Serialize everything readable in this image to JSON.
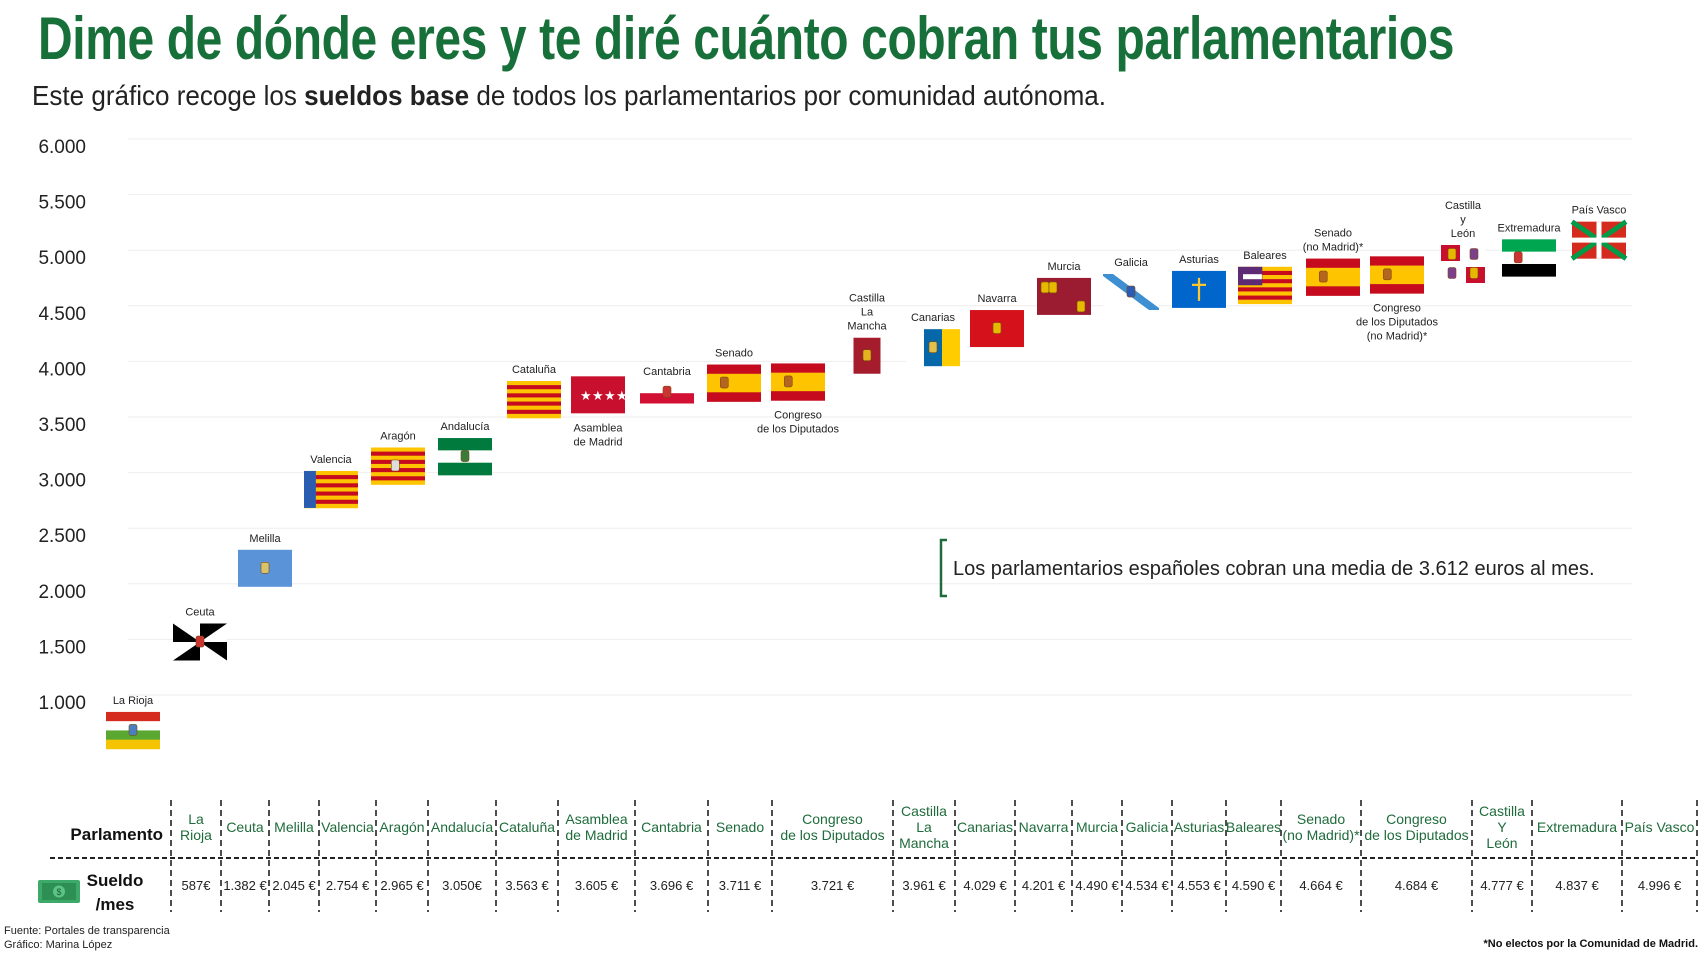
{
  "title": "Dime de dónde eres y te diré cuánto cobran tus parlamentarios",
  "subtitle": {
    "before": "Este gráfico recoge los ",
    "bold": "sueldos base",
    "after": " de todos los parlamentarios por comunidad autónoma."
  },
  "annotation": "Los parlamentarios españoles cobran una media de 3.612 euros al mes.",
  "colors": {
    "title": "#17703a",
    "table_header": "#1f6b3b",
    "grid": "#eeeeee"
  },
  "chart_data": {
    "type": "scatter",
    "marker": "flag",
    "ylim": [
      500,
      6000
    ],
    "yticks": [
      "1.000",
      "1.500",
      "2.000",
      "2.500",
      "3.000",
      "3.500",
      "4.000",
      "4.500",
      "5.000",
      "5.500",
      "6.000"
    ],
    "ytick_values": [
      1000,
      1500,
      2000,
      2500,
      3000,
      3500,
      4000,
      4500,
      5000,
      5500,
      6000
    ],
    "grid": true,
    "points": [
      {
        "label": "La Rioja",
        "flag": "la-rioja",
        "value": 587
      },
      {
        "label": "Ceuta",
        "flag": "ceuta",
        "value": 1382
      },
      {
        "label": "Melilla",
        "flag": "melilla",
        "value": 2045
      },
      {
        "label": "Valencia",
        "flag": "valencia",
        "value": 2754
      },
      {
        "label": "Aragón",
        "flag": "aragon",
        "value": 2965
      },
      {
        "label": "Andalucía",
        "flag": "andalucia",
        "value": 3050
      },
      {
        "label": "Cataluña",
        "flag": "cataluna",
        "value": 3563
      },
      {
        "label": "Asamblea\nde Madrid",
        "flag": "madrid",
        "value": 3605,
        "label_below": true
      },
      {
        "label": "Cantabria",
        "flag": "cantabria",
        "value": 3696
      },
      {
        "label": "Senado",
        "flag": "spain",
        "value": 3711
      },
      {
        "label": "Congreso\nde los Diputados",
        "flag": "spain",
        "value": 3721,
        "label_below": true
      },
      {
        "label": "Castilla\nLa\nMancha",
        "flag": "castilla-la-mancha",
        "value": 3961
      },
      {
        "label": "Canarias",
        "flag": "canarias",
        "value": 4029
      },
      {
        "label": "Navarra",
        "flag": "navarra",
        "value": 4201
      },
      {
        "label": "Murcia",
        "flag": "murcia",
        "value": 4490
      },
      {
        "label": "Galicia",
        "flag": "galicia",
        "value": 4534
      },
      {
        "label": "Asturias",
        "flag": "asturias",
        "value": 4553
      },
      {
        "label": "Baleares",
        "flag": "baleares",
        "value": 4590
      },
      {
        "label": "Senado\n(no Madrid)*",
        "flag": "spain",
        "value": 4664
      },
      {
        "label": "Congreso\nde los Diputados\n(no Madrid)*",
        "flag": "spain",
        "value": 4684,
        "label_below": true
      },
      {
        "label": "Castilla\ny\nLeón",
        "flag": "castilla-leon",
        "value": 4777
      },
      {
        "label": "Extremadura",
        "flag": "extremadura",
        "value": 4837
      },
      {
        "label": "País Vasco",
        "flag": "pais-vasco",
        "value": 4996
      }
    ]
  },
  "table": {
    "row_header_1": "Parlamento",
    "row_header_2": [
      "Sueldo",
      "/mes"
    ],
    "row_icon": "money-bill-icon",
    "columns": [
      {
        "name": "La\nRioja",
        "value": "587€"
      },
      {
        "name": "Ceuta",
        "value": "1.382 €"
      },
      {
        "name": "Melilla",
        "value": "2.045 €"
      },
      {
        "name": "Valencia",
        "value": "2.754 €"
      },
      {
        "name": "Aragón",
        "value": "2.965 €"
      },
      {
        "name": "Andalucía",
        "value": "3.050€"
      },
      {
        "name": "Cataluña",
        "value": "3.563 €"
      },
      {
        "name": "Asamblea\nde Madrid",
        "value": "3.605 €"
      },
      {
        "name": "Cantabria",
        "value": "3.696 €"
      },
      {
        "name": "Senado",
        "value": "3.711 €"
      },
      {
        "name": "Congreso\nde los Diputados",
        "value": "3.721 €"
      },
      {
        "name": "Castilla\nLa\nMancha",
        "value": "3.961 €"
      },
      {
        "name": "Canarias",
        "value": "4.029 €"
      },
      {
        "name": "Navarra",
        "value": "4.201 €"
      },
      {
        "name": "Murcia",
        "value": "4.490  €"
      },
      {
        "name": "Galicia",
        "value": "4.534 €"
      },
      {
        "name": "Asturias",
        "value": "4.553 €"
      },
      {
        "name": "Baleares",
        "value": "4.590 €"
      },
      {
        "name": "Senado\n(no Madrid)*",
        "value": "4.664 €"
      },
      {
        "name": "Congreso\nde los Diputados",
        "value": "4.684 €"
      },
      {
        "name": "Castilla\nY\nLeón",
        "value": "4.777 €"
      },
      {
        "name": "Extremadura",
        "value": "4.837 €"
      },
      {
        "name": "País Vasco",
        "value": "4.996 €"
      }
    ]
  },
  "footer": {
    "source": "Fuente: Portales de transparencia",
    "author": "Gráfico: Marina López",
    "note": "*No electos por la Comunidad de Madrid."
  }
}
